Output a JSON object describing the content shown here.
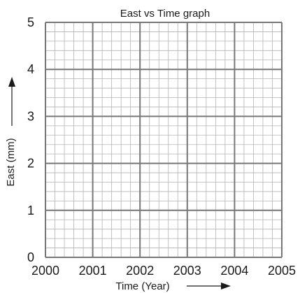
{
  "chart_data": {
    "type": "line",
    "title": "East vs Time graph",
    "xlabel": "Time (Year)",
    "ylabel": "East  (mm)",
    "x_ticks": [
      "2000",
      "2001",
      "2002",
      "2003",
      "2004",
      "2005"
    ],
    "y_ticks": [
      "0",
      "1",
      "2",
      "3",
      "4",
      "5"
    ],
    "xlim": [
      2000,
      2005
    ],
    "ylim": [
      0,
      5
    ],
    "grid": true,
    "grid_minor_per_major": 5,
    "series": []
  },
  "colors": {
    "major_grid": "#777777",
    "minor_grid": "#b3b3b3",
    "text": "#1a1a1a"
  }
}
